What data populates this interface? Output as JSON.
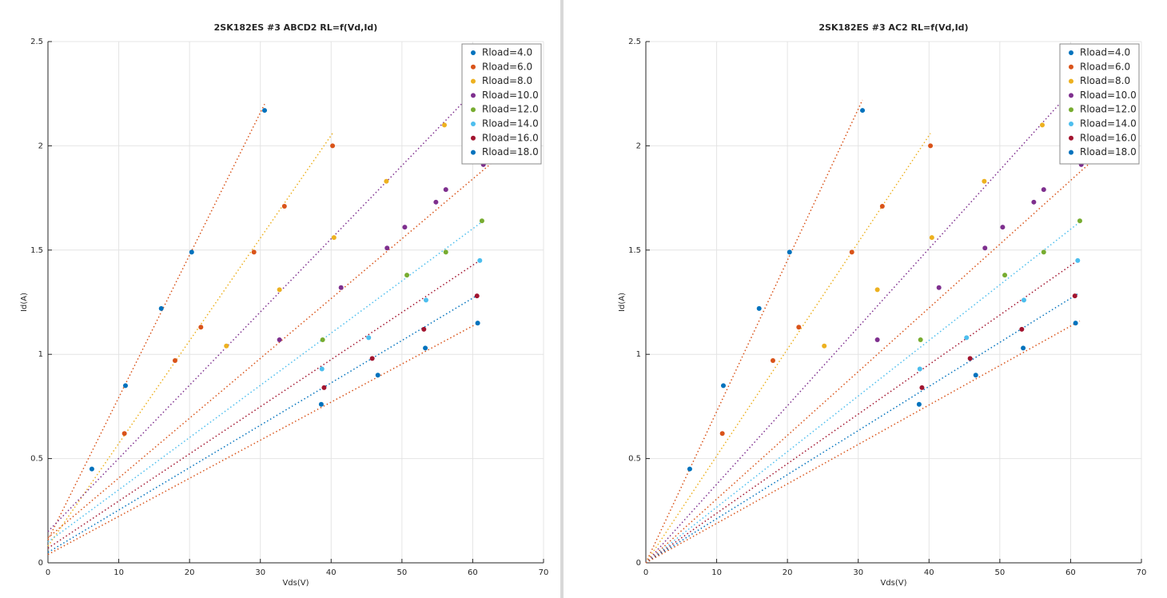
{
  "chart_data": [
    {
      "type": "scatter",
      "title": "2SK182ES #3 ABCD2 RL=f(Vd,Id)",
      "xlabel": "Vds(V)",
      "ylabel": "Id(A)",
      "xlim": [
        0,
        70
      ],
      "ylim": [
        0,
        2.5
      ],
      "xticks": [
        0,
        10,
        20,
        30,
        40,
        50,
        60,
        70
      ],
      "yticks": [
        0,
        0.5,
        1,
        1.5,
        2,
        2.5
      ],
      "grid": true,
      "legend": "upper right",
      "series": [
        {
          "name": "Rload=4.0",
          "color": "#0072BD",
          "x": [
            6.2,
            10.95,
            16.0,
            20.3,
            30.6
          ],
          "values": [
            0.45,
            0.85,
            1.22,
            1.49,
            2.17
          ],
          "fit_color": "#D95319",
          "fit_x": [
            0,
            30.6
          ],
          "fit_y": [
            0.11,
            2.2
          ]
        },
        {
          "name": "Rload=6.0",
          "color": "#D95319",
          "x": [
            10.8,
            17.95,
            21.6,
            29.1,
            33.4,
            40.2
          ],
          "values": [
            0.62,
            0.97,
            1.13,
            1.49,
            1.71,
            2.0
          ],
          "fit_color": "#EDB120",
          "fit_x": [
            0,
            40.2
          ],
          "fit_y": [
            0.08,
            2.06
          ]
        },
        {
          "name": "Rload=8.0",
          "color": "#EDB120",
          "x": [
            25.2,
            32.7,
            40.4,
            47.8,
            56.0
          ],
          "values": [
            1.04,
            1.31,
            1.56,
            1.83,
            2.1
          ],
          "fit_color": "#7E2F8E",
          "fit_x": [
            0,
            58.4
          ],
          "fit_y": [
            0.15,
            2.2
          ]
        },
        {
          "name": "Rload=10.0",
          "color": "#7E2F8E",
          "x": [
            32.7,
            41.4,
            47.9,
            50.4,
            54.8,
            56.2,
            61.5
          ],
          "values": [
            1.07,
            1.32,
            1.51,
            1.61,
            1.73,
            1.79,
            1.91
          ],
          "fit_color": "#D95319",
          "fit_x": [
            0,
            63.8
          ],
          "fit_y": [
            0.12,
            1.95
          ]
        },
        {
          "name": "Rload=12.0",
          "color": "#77AC30",
          "x": [
            38.8,
            50.7,
            56.2,
            61.3
          ],
          "values": [
            1.07,
            1.38,
            1.49,
            1.64
          ],
          "fit_color": "#4DBEEE",
          "fit_x": [
            0,
            61.5
          ],
          "fit_y": [
            0.1,
            1.64
          ]
        },
        {
          "name": "Rload=14.0",
          "color": "#4DBEEE",
          "x": [
            38.7,
            45.3,
            53.4,
            61.0
          ],
          "values": [
            0.93,
            1.08,
            1.26,
            1.45
          ],
          "fit_color": "#A2142F",
          "fit_x": [
            0,
            61
          ],
          "fit_y": [
            0.07,
            1.45
          ]
        },
        {
          "name": "Rload=16.0",
          "color": "#A2142F",
          "x": [
            39.0,
            45.8,
            53.1,
            60.6
          ],
          "values": [
            0.84,
            0.98,
            1.12,
            1.28
          ],
          "fit_color": "#0072BD",
          "fit_x": [
            0,
            61
          ],
          "fit_y": [
            0.05,
            1.29
          ]
        },
        {
          "name": "Rload=18.0",
          "color": "#0072BD",
          "x": [
            38.6,
            46.6,
            53.3,
            60.7
          ],
          "values": [
            0.76,
            0.9,
            1.03,
            1.15
          ],
          "fit_color": "#D95319",
          "fit_x": [
            0,
            61.3
          ],
          "fit_y": [
            0.04,
            1.16
          ]
        }
      ]
    },
    {
      "type": "scatter",
      "title": "2SK182ES #3 AC2 RL=f(Vd,Id)",
      "xlabel": "Vds(V)",
      "ylabel": "Id(A)",
      "xlim": [
        0,
        70
      ],
      "ylim": [
        0,
        2.5
      ],
      "xticks": [
        0,
        10,
        20,
        30,
        40,
        50,
        60,
        70
      ],
      "yticks": [
        0,
        0.5,
        1,
        1.5,
        2,
        2.5
      ],
      "grid": true,
      "legend": "upper right",
      "series": [
        {
          "name": "Rload=4.0",
          "color": "#0072BD",
          "x": [
            6.2,
            10.95,
            16.0,
            20.3,
            30.6
          ],
          "values": [
            0.45,
            0.85,
            1.22,
            1.49,
            2.17
          ],
          "fit_color": "#D95319",
          "fit_x": [
            0,
            30.6
          ],
          "fit_y": [
            0,
            2.22
          ]
        },
        {
          "name": "Rload=6.0",
          "color": "#D95319",
          "x": [
            10.8,
            17.95,
            21.6,
            29.1,
            33.4,
            40.2
          ],
          "values": [
            0.62,
            0.97,
            1.13,
            1.49,
            1.71,
            2.0
          ],
          "fit_color": "#EDB120",
          "fit_x": [
            0,
            40.2
          ],
          "fit_y": [
            0,
            2.06
          ]
        },
        {
          "name": "Rload=8.0",
          "color": "#EDB120",
          "x": [
            25.2,
            32.7,
            40.4,
            47.8,
            56.0
          ],
          "values": [
            1.04,
            1.31,
            1.56,
            1.83,
            2.1
          ],
          "fit_color": "#7E2F8E",
          "fit_x": [
            0,
            58.4
          ],
          "fit_y": [
            0,
            2.2
          ]
        },
        {
          "name": "Rload=10.0",
          "color": "#7E2F8E",
          "x": [
            32.7,
            41.4,
            47.9,
            50.4,
            54.8,
            56.2,
            61.5
          ],
          "values": [
            1.07,
            1.32,
            1.51,
            1.61,
            1.73,
            1.79,
            1.91
          ],
          "fit_color": "#D95319",
          "fit_x": [
            0,
            63.8
          ],
          "fit_y": [
            0,
            1.95
          ]
        },
        {
          "name": "Rload=12.0",
          "color": "#77AC30",
          "x": [
            38.8,
            50.7,
            56.2,
            61.3
          ],
          "values": [
            1.07,
            1.38,
            1.49,
            1.64
          ],
          "fit_color": "#4DBEEE",
          "fit_x": [
            0,
            61.5
          ],
          "fit_y": [
            0,
            1.64
          ]
        },
        {
          "name": "Rload=14.0",
          "color": "#4DBEEE",
          "x": [
            38.7,
            45.3,
            53.4,
            61.0
          ],
          "values": [
            0.93,
            1.08,
            1.26,
            1.45
          ],
          "fit_color": "#A2142F",
          "fit_x": [
            0,
            61
          ],
          "fit_y": [
            0,
            1.45
          ]
        },
        {
          "name": "Rload=16.0",
          "color": "#A2142F",
          "x": [
            39.0,
            45.8,
            53.1,
            60.6
          ],
          "values": [
            0.84,
            0.98,
            1.12,
            1.28
          ],
          "fit_color": "#0072BD",
          "fit_x": [
            0,
            61
          ],
          "fit_y": [
            0,
            1.29
          ]
        },
        {
          "name": "Rload=18.0",
          "color": "#0072BD",
          "x": [
            38.6,
            46.6,
            53.3,
            60.7
          ],
          "values": [
            0.76,
            0.9,
            1.03,
            1.15
          ],
          "fit_color": "#D95319",
          "fit_x": [
            0,
            61.3
          ],
          "fit_y": [
            0,
            1.16
          ]
        }
      ]
    }
  ]
}
